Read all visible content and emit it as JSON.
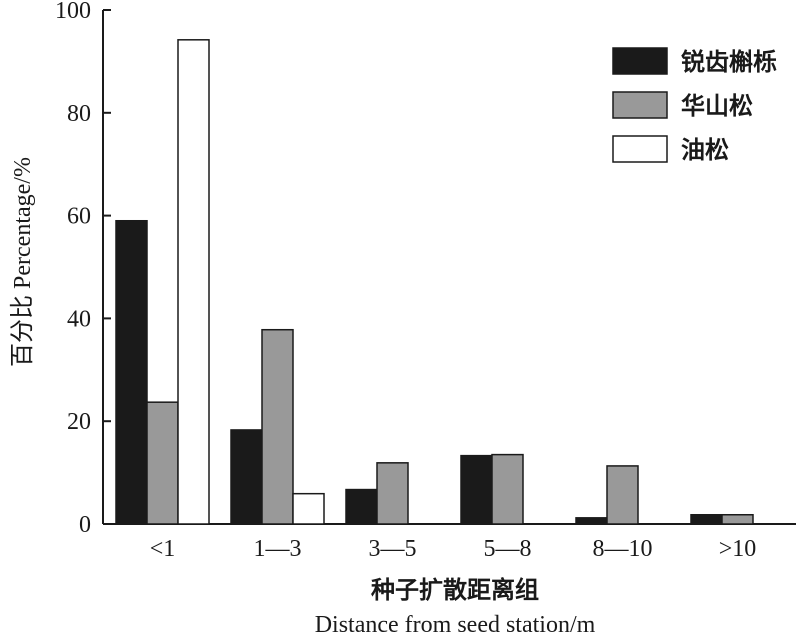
{
  "chart_data": {
    "type": "bar",
    "categories": [
      "<1",
      "1—3",
      "3—5",
      "5—8",
      "8—10",
      ">10"
    ],
    "series": [
      {
        "name": "锐齿槲栎",
        "color": "#1a1a1a",
        "values": [
          59,
          18.3,
          6.7,
          13.3,
          1.2,
          1.8
        ]
      },
      {
        "name": "华山松",
        "color": "#999999",
        "values": [
          23.7,
          37.8,
          11.9,
          13.5,
          11.3,
          1.8
        ]
      },
      {
        "name": "油松",
        "color": "#ffffff",
        "values": [
          94.2,
          5.9,
          0,
          0,
          0,
          0
        ]
      }
    ],
    "ylabel": "百分比 Percentage/%",
    "xlabel_cn": "种子扩散距离组",
    "xlabel_en": "Distance from seed station/m",
    "ylim": [
      0,
      100
    ],
    "yticks": [
      0,
      20,
      40,
      60,
      80,
      100
    ],
    "grid": false,
    "legend_position": "top-right"
  }
}
